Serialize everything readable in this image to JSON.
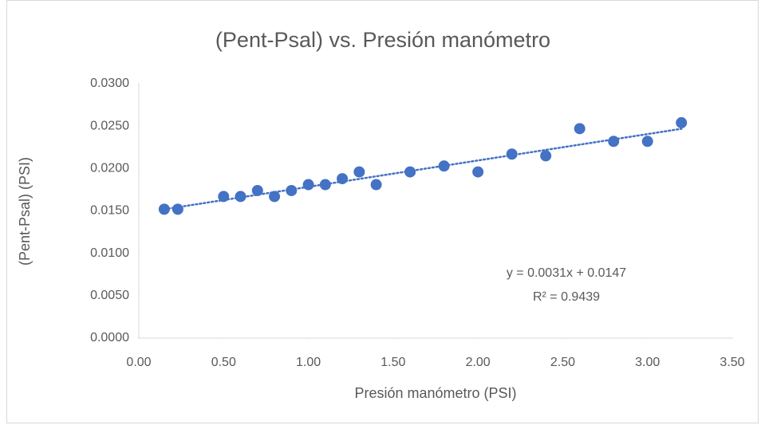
{
  "chart_data": {
    "type": "scatter",
    "title": "(Pent-Psal) vs. Presión manómetro",
    "x_label": "Presión manómetro  (PSI)",
    "y_label": "(Pent-Psal) (PSI)",
    "color": "#4472c4",
    "x": [
      0.15,
      0.23,
      0.5,
      0.6,
      0.7,
      0.8,
      0.9,
      1.0,
      1.1,
      1.2,
      1.3,
      1.4,
      1.6,
      1.8,
      2.0,
      2.2,
      2.4,
      2.6,
      2.8,
      3.0,
      3.2
    ],
    "values": [
      0.0152,
      0.0152,
      0.0167,
      0.0167,
      0.0174,
      0.0167,
      0.0174,
      0.0181,
      0.0181,
      0.0188,
      0.0196,
      0.0181,
      0.0196,
      0.0203,
      0.0196,
      0.0217,
      0.0215,
      0.0247,
      0.0232,
      0.0232,
      0.0254
    ],
    "xlim": [
      0,
      3.5
    ],
    "ylim": [
      0,
      0.03
    ],
    "xticks": [
      {
        "value": 0,
        "label": "0.00"
      },
      {
        "value": 0.5,
        "label": "0.50"
      },
      {
        "value": 1,
        "label": "1.00"
      },
      {
        "value": 1.5,
        "label": "1.50"
      },
      {
        "value": 2,
        "label": "2.00"
      },
      {
        "value": 2.5,
        "label": "2.50"
      },
      {
        "value": 3,
        "label": "3.00"
      },
      {
        "value": 3.5,
        "label": "3.50"
      }
    ],
    "yticks": [
      {
        "value": 0,
        "label": "0.0000"
      },
      {
        "value": 0.005,
        "label": "0.0050"
      },
      {
        "value": 0.01,
        "label": "0.0100"
      },
      {
        "value": 0.015,
        "label": "0.0150"
      },
      {
        "value": 0.02,
        "label": "0.0200"
      },
      {
        "value": 0.025,
        "label": "0.0250"
      },
      {
        "value": 0.03,
        "label": "0.0300"
      }
    ],
    "trendline": "linear",
    "annotations": [
      "y = 0.0031x + 0.0147",
      "R² = 0.9439"
    ]
  }
}
